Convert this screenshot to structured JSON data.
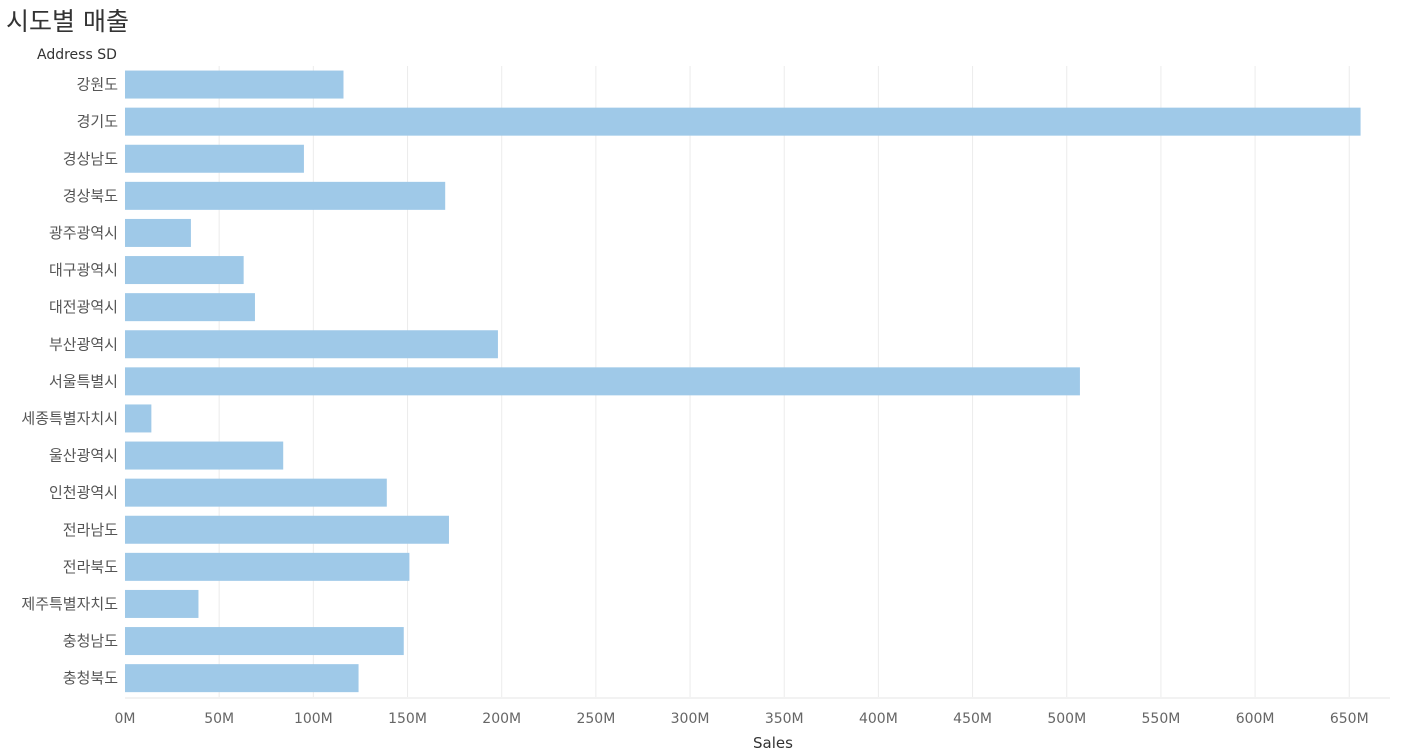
{
  "title": "시도별 매출",
  "row_header": "Address SD",
  "chart_data": {
    "type": "bar",
    "orientation": "horizontal",
    "title": "시도별 매출",
    "xlabel": "Sales",
    "ylabel": "Address SD",
    "categories": [
      "강원도",
      "경기도",
      "경상남도",
      "경상북도",
      "광주광역시",
      "대구광역시",
      "대전광역시",
      "부산광역시",
      "서울특별시",
      "세종특별자치시",
      "울산광역시",
      "인천광역시",
      "전라남도",
      "전라북도",
      "제주특별자치도",
      "충청남도",
      "충청북도"
    ],
    "values": [
      116,
      656,
      95,
      170,
      35,
      63,
      69,
      198,
      507,
      14,
      84,
      139,
      172,
      151,
      39,
      148,
      124
    ],
    "unit": "M",
    "xlim": [
      0,
      680
    ],
    "x_ticks": [
      0,
      50,
      100,
      150,
      200,
      250,
      300,
      350,
      400,
      450,
      500,
      550,
      600,
      650
    ],
    "x_tick_labels": [
      "0M",
      "50M",
      "100M",
      "150M",
      "200M",
      "250M",
      "300M",
      "350M",
      "400M",
      "450M",
      "500M",
      "550M",
      "600M",
      "650M"
    ],
    "grid": "vertical",
    "legend": "none",
    "bar_color": "#9fc9e8",
    "grid_color": "#ececec"
  }
}
